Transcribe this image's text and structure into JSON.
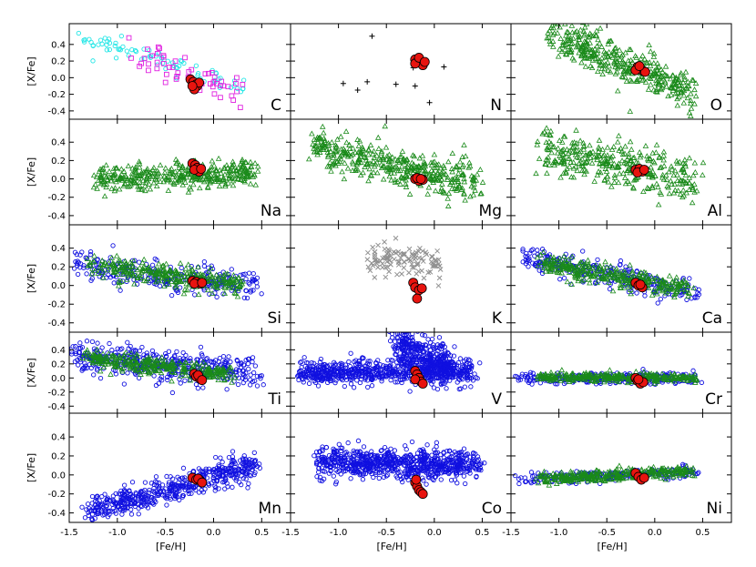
{
  "chart_data": {
    "type": "scatter",
    "title": "",
    "xlabel": "[Fe/H]",
    "ylabel": "[X/Fe]",
    "xlim": [
      -1.5,
      0.8
    ],
    "ylim": [
      -0.5,
      0.65
    ],
    "x_ticks": [
      "-1.5",
      "-1.0",
      "-0.5",
      "0.0",
      "0.5"
    ],
    "y_ticks": [
      "-0.4",
      "-0.2",
      "0.0",
      "0.2",
      "0.4"
    ],
    "grid": false,
    "colors": {
      "red_giants": "#e8140f",
      "green_triangles": "#1a8a1a",
      "blue_circles": "#1010e0",
      "cyan_circles": "#22e6e6",
      "magenta_squares": "#e020e0",
      "black_plus": "#000000",
      "gray_cross": "#909090"
    },
    "panels": [
      {
        "element": "C",
        "backgrounds": [
          {
            "name": "cyan-circles",
            "marker": "o",
            "color": "#22e6e6",
            "n": 80,
            "x_from": -1.45,
            "x_to": 0.35,
            "y_at_start": 0.52,
            "y_at_end": -0.12,
            "spread": 0.06
          },
          {
            "name": "magenta-squares",
            "marker": "s",
            "color": "#e020e0",
            "n": 55,
            "x_from": -0.9,
            "x_to": 0.25,
            "y_at_start": 0.35,
            "y_at_end": -0.18,
            "spread": 0.1
          }
        ],
        "stars": [
          [
            -0.24,
            -0.02
          ],
          [
            -0.21,
            -0.05
          ],
          [
            -0.18,
            -0.08
          ],
          [
            -0.17,
            -0.1
          ],
          [
            -0.2,
            -0.14
          ],
          [
            -0.15,
            -0.06
          ],
          [
            -0.22,
            -0.1
          ]
        ]
      },
      {
        "element": "N",
        "backgrounds": [],
        "points": [
          [
            -0.65,
            0.5
          ],
          [
            0.1,
            0.13
          ],
          [
            -0.95,
            -0.07
          ],
          [
            -0.8,
            -0.15
          ],
          [
            -0.7,
            -0.05
          ],
          [
            -0.4,
            -0.08
          ],
          [
            -0.2,
            -0.1
          ],
          [
            -0.05,
            -0.3
          ],
          [
            -0.22,
            0.12
          ]
        ],
        "stars": [
          [
            -0.2,
            0.22
          ],
          [
            -0.17,
            0.2
          ],
          [
            -0.14,
            0.18
          ],
          [
            -0.12,
            0.15
          ],
          [
            -0.2,
            0.17
          ],
          [
            -0.16,
            0.24
          ],
          [
            -0.1,
            0.19
          ]
        ]
      },
      {
        "element": "O",
        "backgrounds": [
          {
            "name": "green-triangles",
            "marker": "^",
            "color": "#1a8a1a",
            "n": 380,
            "x_from": -1.1,
            "x_to": 0.4,
            "y_at_start": 0.55,
            "y_at_end": -0.2,
            "spread": 0.12
          }
        ],
        "stars": [
          [
            -0.18,
            0.13
          ],
          [
            -0.15,
            0.1
          ],
          [
            -0.12,
            0.08
          ],
          [
            -0.2,
            0.09
          ],
          [
            -0.1,
            0.07
          ],
          [
            -0.16,
            0.14
          ]
        ]
      },
      {
        "element": "Na",
        "backgrounds": [
          {
            "name": "green-triangles",
            "marker": "^",
            "color": "#1a8a1a",
            "n": 380,
            "x_from": -1.2,
            "x_to": 0.45,
            "y_at_start": 0.02,
            "y_at_end": 0.06,
            "spread": 0.07
          }
        ],
        "stars": [
          [
            -0.22,
            0.17
          ],
          [
            -0.19,
            0.15
          ],
          [
            -0.17,
            0.12
          ],
          [
            -0.15,
            0.08
          ],
          [
            -0.2,
            0.1
          ],
          [
            -0.13,
            0.11
          ]
        ]
      },
      {
        "element": "Mg",
        "backgrounds": [
          {
            "name": "green-triangles",
            "marker": "^",
            "color": "#1a8a1a",
            "n": 400,
            "x_from": -1.3,
            "x_to": 0.45,
            "y_at_start": 0.35,
            "y_at_end": -0.05,
            "spread": 0.1
          }
        ],
        "stars": [
          [
            -0.2,
            0.0
          ],
          [
            -0.16,
            -0.02
          ],
          [
            -0.12,
            -0.01
          ],
          [
            -0.18,
            0.01
          ],
          [
            -0.14,
            0.0
          ]
        ]
      },
      {
        "element": "Al",
        "backgrounds": [
          {
            "name": "green-triangles",
            "marker": "^",
            "color": "#1a8a1a",
            "n": 340,
            "x_from": -1.2,
            "x_to": 0.45,
            "y_at_start": 0.3,
            "y_at_end": 0.0,
            "spread": 0.12
          }
        ],
        "stars": [
          [
            -0.2,
            0.1
          ],
          [
            -0.16,
            0.11
          ],
          [
            -0.13,
            0.08
          ],
          [
            -0.18,
            0.07
          ],
          [
            -0.11,
            0.1
          ]
        ]
      },
      {
        "element": "Si",
        "backgrounds": [
          {
            "name": "blue-circles",
            "marker": "o",
            "color": "#1010e0",
            "n": 260,
            "x_from": -1.45,
            "x_to": 0.45,
            "y_at_start": 0.22,
            "y_at_end": 0.0,
            "spread": 0.08
          },
          {
            "name": "green-triangles",
            "marker": "^",
            "color": "#1a8a1a",
            "n": 300,
            "x_from": -1.3,
            "x_to": 0.3,
            "y_at_start": 0.22,
            "y_at_end": 0.0,
            "spread": 0.06
          }
        ],
        "stars": [
          [
            -0.22,
            0.05
          ],
          [
            -0.18,
            0.04
          ],
          [
            -0.14,
            0.02
          ],
          [
            -0.2,
            0.02
          ],
          [
            -0.12,
            0.03
          ]
        ]
      },
      {
        "element": "K",
        "backgrounds": [
          {
            "name": "gray-crosses",
            "marker": "x",
            "color": "#909090",
            "n": 110,
            "x_from": -0.65,
            "x_to": 0.05,
            "y_at_start": 0.3,
            "y_at_end": 0.22,
            "spread": 0.08
          }
        ],
        "stars": [
          [
            -0.22,
            0.03
          ],
          [
            -0.2,
            -0.02
          ],
          [
            -0.16,
            -0.05
          ],
          [
            -0.13,
            -0.03
          ],
          [
            -0.18,
            -0.14
          ]
        ]
      },
      {
        "element": "Ca",
        "backgrounds": [
          {
            "name": "blue-circles",
            "marker": "o",
            "color": "#1010e0",
            "n": 260,
            "x_from": -1.4,
            "x_to": 0.45,
            "y_at_start": 0.3,
            "y_at_end": -0.08,
            "spread": 0.07
          },
          {
            "name": "green-triangles",
            "marker": "^",
            "color": "#1a8a1a",
            "n": 320,
            "x_from": -1.2,
            "x_to": 0.35,
            "y_at_start": 0.25,
            "y_at_end": -0.04,
            "spread": 0.05
          }
        ],
        "stars": [
          [
            -0.2,
            0.03
          ],
          [
            -0.17,
            0.0
          ],
          [
            -0.13,
            -0.02
          ],
          [
            -0.15,
            0.01
          ]
        ]
      },
      {
        "element": "Ti",
        "backgrounds": [
          {
            "name": "blue-circles",
            "marker": "o",
            "color": "#1010e0",
            "n": 420,
            "x_from": -1.45,
            "x_to": 0.5,
            "y_at_start": 0.32,
            "y_at_end": 0.06,
            "spread": 0.11
          },
          {
            "name": "green-triangles",
            "marker": "^",
            "color": "#1a8a1a",
            "n": 320,
            "x_from": -1.3,
            "x_to": 0.2,
            "y_at_start": 0.28,
            "y_at_end": 0.05,
            "spread": 0.06
          }
        ],
        "stars": [
          [
            -0.2,
            0.06
          ],
          [
            -0.18,
            0.02
          ],
          [
            -0.14,
            -0.01
          ],
          [
            -0.16,
            0.04
          ],
          [
            -0.12,
            -0.03
          ]
        ]
      },
      {
        "element": "V",
        "backgrounds": [
          {
            "name": "blue-circles",
            "marker": "o",
            "color": "#1010e0",
            "n": 700,
            "x_from": -1.4,
            "x_to": 0.4,
            "y_at_start": 0.08,
            "y_at_end": 0.1,
            "spread": 0.08
          },
          {
            "name": "blue-circles-cloud",
            "marker": "o",
            "color": "#1010e0",
            "n": 380,
            "x_from": -0.4,
            "x_to": 0.2,
            "y_at_start": 0.55,
            "y_at_end": 0.1,
            "spread": 0.14
          }
        ],
        "stars": [
          [
            -0.2,
            0.1
          ],
          [
            -0.18,
            0.05
          ],
          [
            -0.16,
            0.0
          ],
          [
            -0.14,
            -0.05
          ],
          [
            -0.2,
            -0.02
          ],
          [
            -0.12,
            -0.08
          ]
        ]
      },
      {
        "element": "Cr",
        "backgrounds": [
          {
            "name": "blue-circles",
            "marker": "o",
            "color": "#1010e0",
            "n": 260,
            "x_from": -1.4,
            "x_to": 0.45,
            "y_at_start": 0.0,
            "y_at_end": 0.0,
            "spread": 0.04
          },
          {
            "name": "green-triangles",
            "marker": "^",
            "color": "#1a8a1a",
            "n": 320,
            "x_from": -1.2,
            "x_to": 0.4,
            "y_at_start": 0.02,
            "y_at_end": 0.0,
            "spread": 0.03
          }
        ],
        "stars": [
          [
            -0.2,
            0.0
          ],
          [
            -0.18,
            -0.04
          ],
          [
            -0.15,
            -0.08
          ],
          [
            -0.12,
            -0.06
          ],
          [
            -0.17,
            -0.02
          ]
        ]
      },
      {
        "element": "Mn",
        "backgrounds": [
          {
            "name": "blue-circles",
            "marker": "o",
            "color": "#1010e0",
            "n": 520,
            "x_from": -1.3,
            "x_to": 0.45,
            "y_at_start": -0.38,
            "y_at_end": 0.1,
            "spread": 0.07
          }
        ],
        "stars": [
          [
            -0.22,
            -0.03
          ],
          [
            -0.18,
            -0.05
          ],
          [
            -0.14,
            -0.06
          ],
          [
            -0.16,
            -0.04
          ],
          [
            -0.12,
            -0.08
          ]
        ]
      },
      {
        "element": "Co",
        "backgrounds": [
          {
            "name": "blue-circles",
            "marker": "o",
            "color": "#1010e0",
            "n": 780,
            "x_from": -1.2,
            "x_to": 0.45,
            "y_at_start": 0.15,
            "y_at_end": 0.1,
            "spread": 0.08
          }
        ],
        "stars": [
          [
            -0.2,
            -0.08
          ],
          [
            -0.18,
            -0.12
          ],
          [
            -0.16,
            -0.16
          ],
          [
            -0.14,
            -0.18
          ],
          [
            -0.12,
            -0.2
          ],
          [
            -0.19,
            -0.05
          ]
        ]
      },
      {
        "element": "Ni",
        "backgrounds": [
          {
            "name": "blue-circles",
            "marker": "o",
            "color": "#1010e0",
            "n": 220,
            "x_from": -1.4,
            "x_to": 0.45,
            "y_at_start": -0.05,
            "y_at_end": 0.04,
            "spread": 0.03
          },
          {
            "name": "green-triangles",
            "marker": "^",
            "color": "#1a8a1a",
            "n": 320,
            "x_from": -1.2,
            "x_to": 0.4,
            "y_at_start": -0.04,
            "y_at_end": 0.04,
            "spread": 0.03
          }
        ],
        "stars": [
          [
            -0.2,
            0.02
          ],
          [
            -0.17,
            -0.02
          ],
          [
            -0.14,
            -0.05
          ],
          [
            -0.11,
            -0.03
          ]
        ]
      }
    ]
  }
}
